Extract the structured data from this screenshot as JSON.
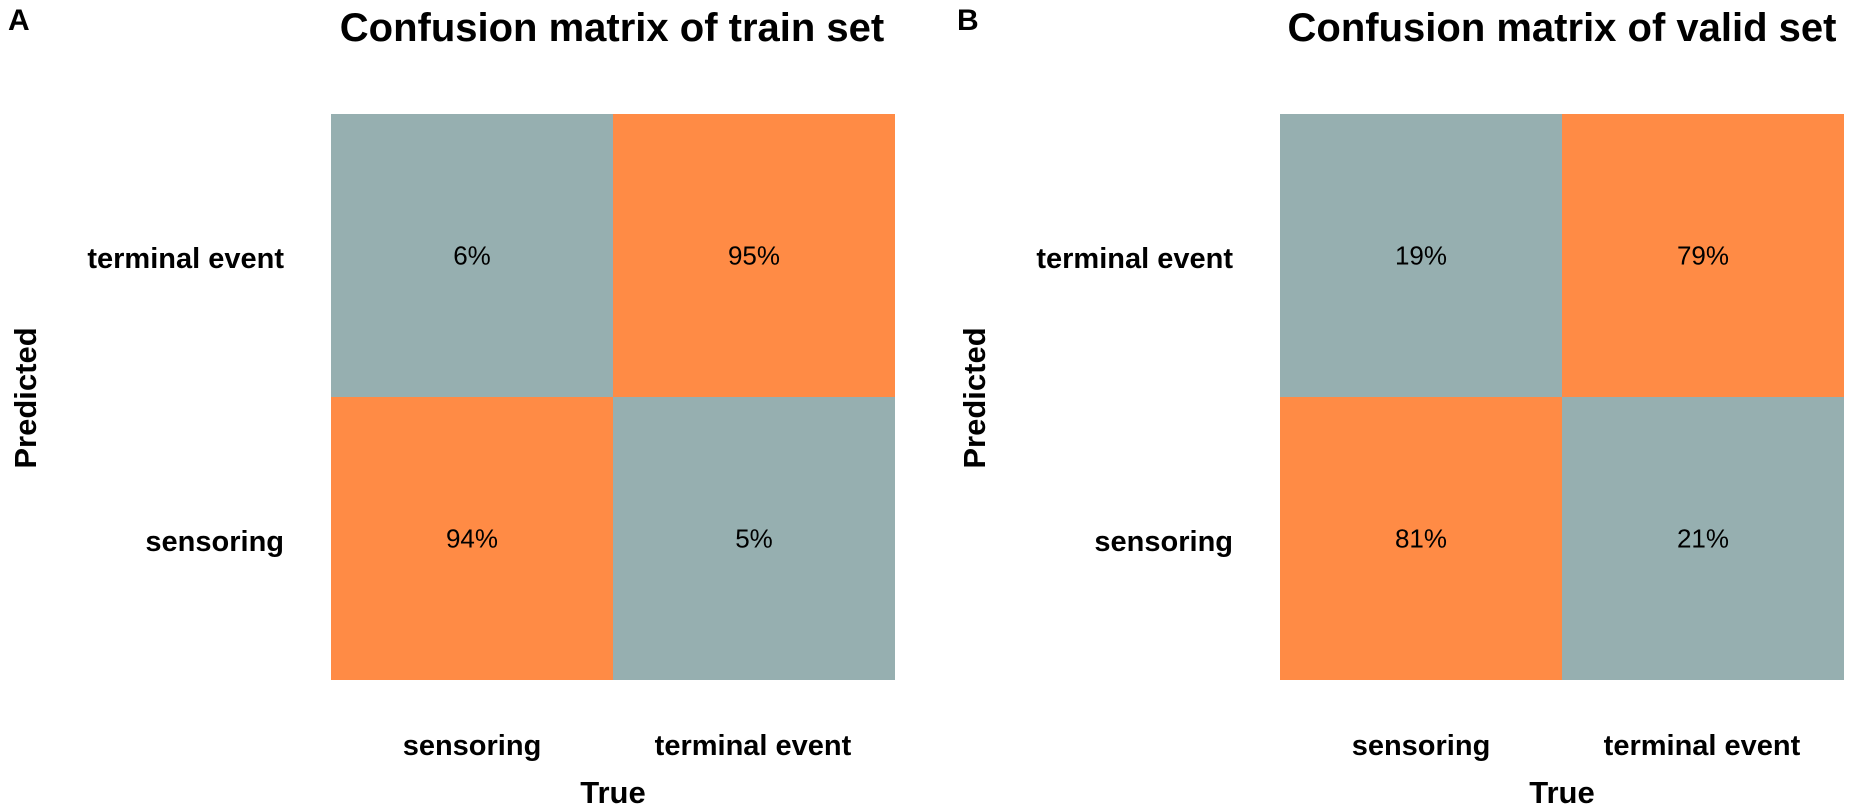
{
  "colors": {
    "low": "#96AFB0",
    "high": "#FF8B45"
  },
  "chart_data": [
    {
      "type": "heatmap",
      "panel": "A",
      "title": "Confusion matrix of train set",
      "xlabel": "True",
      "ylabel": "Predicted",
      "x_categories": [
        "sensoring",
        "terminal event"
      ],
      "y_categories": [
        "terminal event",
        "sensoring"
      ],
      "values": [
        [
          6,
          95
        ],
        [
          94,
          5
        ]
      ],
      "labels": [
        [
          "6%",
          "95%"
        ],
        [
          "94%",
          "5%"
        ]
      ]
    },
    {
      "type": "heatmap",
      "panel": "B",
      "title": "Confusion matrix of valid set",
      "xlabel": "True",
      "ylabel": "Predicted",
      "x_categories": [
        "sensoring",
        "terminal event"
      ],
      "y_categories": [
        "terminal event",
        "sensoring"
      ],
      "values": [
        [
          19,
          79
        ],
        [
          81,
          21
        ]
      ],
      "labels": [
        [
          "19%",
          "79%"
        ],
        [
          "81%",
          "21%"
        ]
      ]
    }
  ]
}
